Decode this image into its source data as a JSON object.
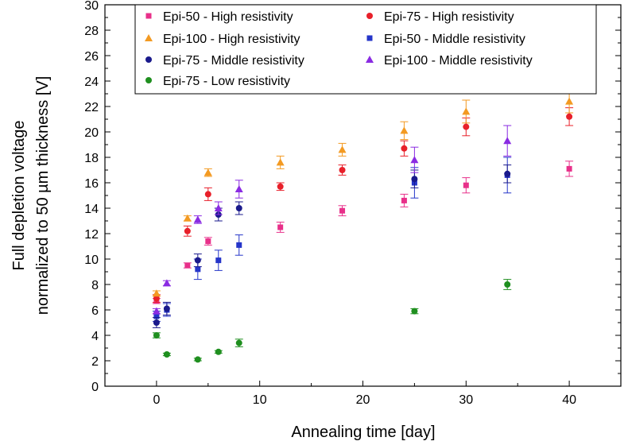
{
  "chart_data": {
    "type": "scatter",
    "title": "",
    "xlabel": "Annealing time [day]",
    "ylabel_line1": "Full depletion voltage",
    "ylabel_line2": "normalized to 50 µm thickness [V]",
    "xlim": [
      -5,
      45
    ],
    "ylim": [
      0,
      30
    ],
    "xticks": [
      0,
      10,
      20,
      30,
      40
    ],
    "yticks": [
      0,
      2,
      4,
      6,
      8,
      10,
      12,
      14,
      16,
      18,
      20,
      22,
      24,
      26,
      28,
      30
    ],
    "grid": false,
    "legend_position": "top",
    "series": [
      {
        "name": "Epi-50 - High resistivity",
        "color": "#e8308a",
        "marker": "square",
        "x": [
          0,
          3,
          5,
          12,
          18,
          24,
          30,
          40
        ],
        "y": [
          6.7,
          9.5,
          11.4,
          12.5,
          13.8,
          14.6,
          15.8,
          17.1
        ],
        "err": [
          0.2,
          0.2,
          0.3,
          0.4,
          0.4,
          0.5,
          0.6,
          0.6
        ]
      },
      {
        "name": "Epi-75 - High resistivity",
        "color": "#e8202a",
        "marker": "circle",
        "x": [
          0,
          3,
          5,
          12,
          18,
          24,
          30,
          40
        ],
        "y": [
          6.9,
          12.2,
          15.1,
          15.7,
          17.0,
          18.7,
          20.4,
          21.2
        ],
        "err": [
          0.3,
          0.4,
          0.5,
          0.3,
          0.4,
          0.6,
          0.7,
          0.7
        ]
      },
      {
        "name": "Epi-100 - High resistivity",
        "color": "#f39a22",
        "marker": "triangle",
        "x": [
          0,
          3,
          5,
          12,
          18,
          24,
          30,
          40
        ],
        "y": [
          7.3,
          13.2,
          16.8,
          17.6,
          18.6,
          20.1,
          21.6,
          22.4
        ],
        "err": [
          0.2,
          0.2,
          0.3,
          0.5,
          0.5,
          0.7,
          0.9,
          0.9
        ]
      },
      {
        "name": "Epi-50 - Middle resistivity",
        "color": "#2535c9",
        "marker": "square",
        "x": [
          0,
          1,
          4,
          6,
          8,
          25,
          34
        ],
        "y": [
          5.5,
          6.0,
          9.2,
          9.9,
          11.1,
          16.0,
          16.6
        ],
        "err": [
          0.4,
          0.5,
          0.8,
          0.8,
          0.8,
          1.2,
          1.4
        ]
      },
      {
        "name": "Epi-75 - Middle resistivity",
        "color": "#1a1a8c",
        "marker": "circle",
        "x": [
          0,
          1,
          4,
          6,
          8,
          25,
          34
        ],
        "y": [
          5.0,
          6.1,
          9.9,
          13.5,
          14.0,
          16.3,
          16.7
        ],
        "err": [
          0.4,
          0.5,
          0.5,
          0.5,
          0.5,
          0.7,
          0.7
        ]
      },
      {
        "name": "Epi-100 - Middle resistivity",
        "color": "#8a2be2",
        "marker": "triangle",
        "x": [
          0,
          1,
          4,
          6,
          8,
          25,
          34
        ],
        "y": [
          5.9,
          8.1,
          13.1,
          14.0,
          15.5,
          17.8,
          19.3
        ],
        "err": [
          0.2,
          0.2,
          0.3,
          0.5,
          0.7,
          1.0,
          1.2
        ]
      },
      {
        "name": "Epi-75 - Low resistivity",
        "color": "#1f8f1f",
        "marker": "circle",
        "x": [
          0,
          1,
          4,
          6,
          8,
          25,
          34
        ],
        "y": [
          4.0,
          2.5,
          2.1,
          2.7,
          3.4,
          5.9,
          8.0
        ],
        "err": [
          0.2,
          0.1,
          0.1,
          0.1,
          0.3,
          0.2,
          0.4
        ]
      }
    ],
    "legend_order": [
      0,
      1,
      2,
      3,
      4,
      5,
      6
    ]
  }
}
